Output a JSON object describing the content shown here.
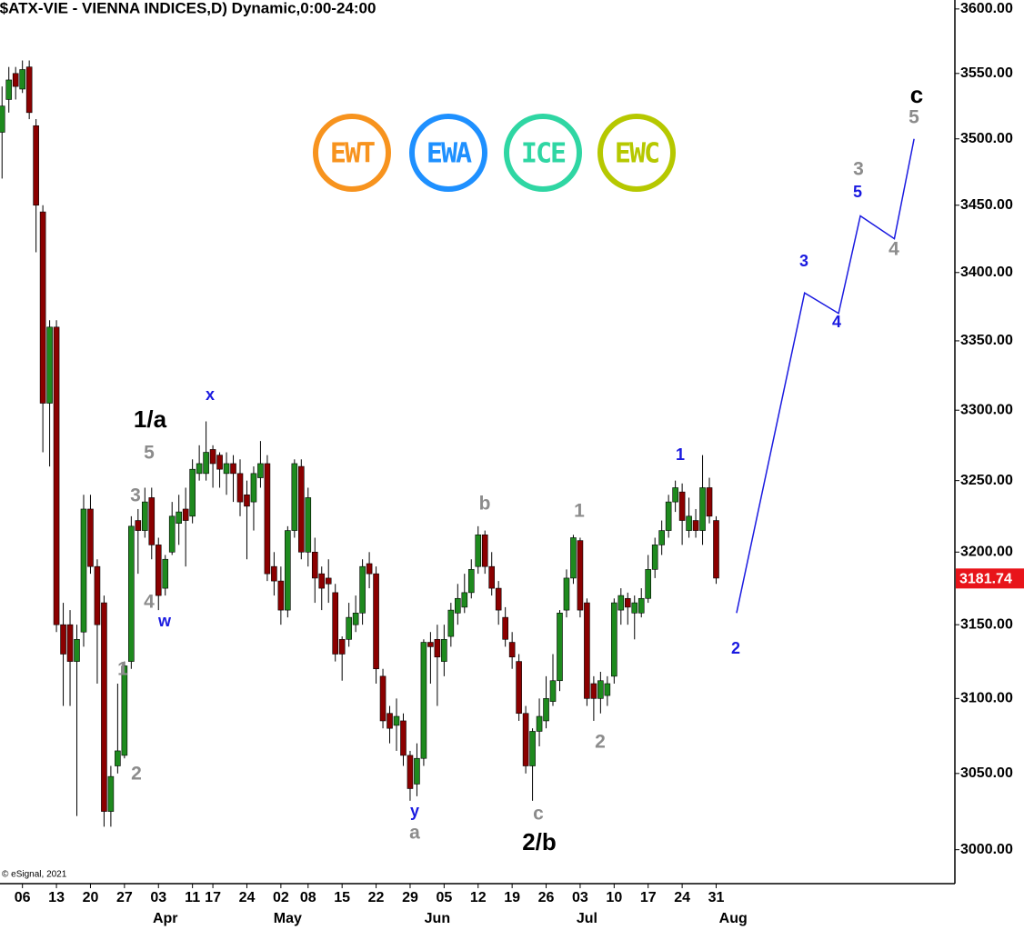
{
  "chart_data": {
    "type": "candlestick",
    "title": "($ATX-VIE - VIENNA INDICES,D) Dynamic,0:00-24:00",
    "copyright": "© eSignal, 2021",
    "logos": [
      {
        "text": "EWT",
        "color": "#f7931e"
      },
      {
        "text": "EWA",
        "color": "#1e90ff"
      },
      {
        "text": "ICE",
        "color": "#2fd6a3"
      },
      {
        "text": "EWC",
        "color": "#b6c800"
      }
    ],
    "log_scale": true,
    "grid": false,
    "up_color": "#1e8a1e",
    "down_color": "#8b0000",
    "ylim": [
      2978,
      3607
    ],
    "yticks": [
      {
        "value": 3000,
        "label": "3000.00"
      },
      {
        "value": 3050,
        "label": "3050.00"
      },
      {
        "value": 3100,
        "label": "3100.00"
      },
      {
        "value": 3150,
        "label": "3150.00"
      },
      {
        "value": 3200,
        "label": "3200.00"
      },
      {
        "value": 3250,
        "label": "3250.00"
      },
      {
        "value": 3300,
        "label": "3300.00"
      },
      {
        "value": 3350,
        "label": "3350.00"
      },
      {
        "value": 3400,
        "label": "3400.00"
      },
      {
        "value": 3450,
        "label": "3450.00"
      },
      {
        "value": 3500,
        "label": "3500.00"
      },
      {
        "value": 3550,
        "label": "3550.00"
      },
      {
        "value": 3600,
        "label": "3600.00"
      }
    ],
    "xlim": [
      -0.3,
      140.1
    ],
    "xticks": [
      {
        "value": 3,
        "label": "06"
      },
      {
        "value": 8,
        "label": "13"
      },
      {
        "value": 13,
        "label": "20"
      },
      {
        "value": 18,
        "label": "27"
      },
      {
        "value": 23,
        "label": "03"
      },
      {
        "value": 28,
        "label": "11"
      },
      {
        "value": 31,
        "label": "17"
      },
      {
        "value": 36,
        "label": "24"
      },
      {
        "value": 41,
        "label": "02"
      },
      {
        "value": 45,
        "label": "08"
      },
      {
        "value": 50,
        "label": "15"
      },
      {
        "value": 55,
        "label": "22"
      },
      {
        "value": 60,
        "label": "29"
      },
      {
        "value": 65,
        "label": "05"
      },
      {
        "value": 70,
        "label": "12"
      },
      {
        "value": 75,
        "label": "19"
      },
      {
        "value": 80,
        "label": "26"
      },
      {
        "value": 85,
        "label": "03"
      },
      {
        "value": 90,
        "label": "10"
      },
      {
        "value": 95,
        "label": "17"
      },
      {
        "value": 100,
        "label": "24"
      },
      {
        "value": 105,
        "label": "31"
      }
    ],
    "month_ticks": [
      {
        "value": 24,
        "label": "Apr"
      },
      {
        "value": 42,
        "label": "May"
      },
      {
        "value": 64,
        "label": "Jun"
      },
      {
        "value": 86,
        "label": "Jul"
      },
      {
        "value": 107.5,
        "label": "Aug"
      }
    ],
    "last_price": 3181.74,
    "last_price_color": "#e8141a",
    "open": [
      3505,
      3530,
      3550,
      3538,
      3555,
      3510,
      3445,
      3305,
      3360,
      3150,
      3150,
      3125,
      3145,
      3230,
      3190,
      3165,
      3025,
      3055,
      3062,
      3125,
      3222,
      3215,
      3238,
      3205,
      3175,
      3200,
      3220,
      3230,
      3225,
      3255,
      3255,
      3272,
      3268,
      3255,
      3262,
      3255,
      3240,
      3235,
      3252,
      3262,
      3190,
      3180,
      3160,
      3215,
      3260,
      3200,
      3200,
      3185,
      3182,
      3172,
      3140,
      3140,
      3150,
      3158,
      3192,
      3185,
      3115,
      3090,
      3082,
      3085,
      3062,
      3043,
      3060,
      3138,
      3140,
      3125,
      3142,
      3158,
      3162,
      3172,
      3190,
      3212,
      3190,
      3175,
      3155,
      3138,
      3125,
      3090,
      3055,
      3078,
      3085,
      3098,
      3112,
      3160,
      3182,
      3208,
      3165,
      3110,
      3100,
      3102,
      3115,
      3160,
      3168,
      3158,
      3158,
      3168,
      3188,
      3205,
      3215,
      3235,
      3242,
      3215,
      3222,
      3215,
      3245,
      3222
    ],
    "close": [
      3525,
      3545,
      3540,
      3553,
      3520,
      3450,
      3305,
      3360,
      3150,
      3130,
      3125,
      3140,
      3230,
      3190,
      3150,
      3025,
      3048,
      3065,
      3122,
      3218,
      3215,
      3235,
      3205,
      3170,
      3195,
      3225,
      3228,
      3222,
      3258,
      3262,
      3270,
      3262,
      3258,
      3262,
      3255,
      3235,
      3232,
      3255,
      3262,
      3185,
      3180,
      3160,
      3215,
      3262,
      3200,
      3238,
      3182,
      3175,
      3178,
      3130,
      3130,
      3155,
      3158,
      3190,
      3185,
      3120,
      3085,
      3080,
      3088,
      3062,
      3040,
      3060,
      3138,
      3135,
      3128,
      3140,
      3160,
      3168,
      3172,
      3188,
      3212,
      3190,
      3175,
      3160,
      3140,
      3128,
      3090,
      3055,
      3078,
      3088,
      3100,
      3112,
      3158,
      3182,
      3210,
      3160,
      3100,
      3100,
      3112,
      3110,
      3165,
      3170,
      3162,
      3165,
      3168,
      3188,
      3205,
      3215,
      3235,
      3245,
      3222,
      3225,
      3215,
      3245,
      3225,
      3182
    ],
    "high": [
      3540,
      3555,
      3555,
      3560,
      3560,
      3515,
      3450,
      3365,
      3365,
      3165,
      3160,
      3150,
      3240,
      3240,
      3195,
      3170,
      3055,
      3110,
      3125,
      3225,
      3230,
      3245,
      3245,
      3210,
      3198,
      3235,
      3240,
      3245,
      3265,
      3275,
      3292,
      3275,
      3270,
      3270,
      3268,
      3265,
      3250,
      3260,
      3278,
      3268,
      3200,
      3190,
      3218,
      3265,
      3265,
      3245,
      3210,
      3190,
      3195,
      3178,
      3142,
      3165,
      3170,
      3195,
      3200,
      3190,
      3120,
      3095,
      3100,
      3090,
      3065,
      3070,
      3140,
      3145,
      3150,
      3150,
      3165,
      3178,
      3185,
      3195,
      3218,
      3215,
      3200,
      3180,
      3162,
      3145,
      3130,
      3095,
      3080,
      3100,
      3115,
      3130,
      3160,
      3188,
      3212,
      3210,
      3168,
      3115,
      3118,
      3115,
      3168,
      3175,
      3172,
      3170,
      3175,
      3198,
      3210,
      3222,
      3240,
      3250,
      3248,
      3238,
      3230,
      3268,
      3252,
      3225
    ],
    "low": [
      3470,
      3520,
      3530,
      3535,
      3515,
      3415,
      3270,
      3260,
      3145,
      3095,
      3095,
      3022,
      3135,
      3185,
      3110,
      3015,
      3015,
      3050,
      3060,
      3120,
      3185,
      3210,
      3195,
      3160,
      3170,
      3198,
      3205,
      3190,
      3220,
      3250,
      3250,
      3245,
      3245,
      3240,
      3235,
      3225,
      3195,
      3215,
      3245,
      3180,
      3170,
      3150,
      3155,
      3210,
      3195,
      3190,
      3165,
      3160,
      3165,
      3125,
      3112,
      3135,
      3145,
      3150,
      3175,
      3110,
      3080,
      3070,
      3065,
      3055,
      3032,
      3035,
      3055,
      3110,
      3095,
      3115,
      3135,
      3150,
      3158,
      3168,
      3185,
      3185,
      3170,
      3150,
      3135,
      3120,
      3085,
      3050,
      3032,
      3068,
      3080,
      3095,
      3105,
      3155,
      3178,
      3155,
      3095,
      3085,
      3090,
      3095,
      3110,
      3150,
      3150,
      3140,
      3155,
      3165,
      3182,
      3198,
      3210,
      3228,
      3205,
      3210,
      3210,
      3205,
      3220,
      3178
    ],
    "forecast": {
      "color": "#1a1ae0",
      "x": [
        108,
        118,
        123,
        126.2,
        131.2,
        134.1
      ],
      "values": [
        3158,
        3385,
        3370,
        3442,
        3425,
        3500
      ]
    },
    "annotations": [
      {
        "text": "1/a",
        "color": "#000000"
      },
      {
        "text": "x",
        "color": "#1a1ae0"
      },
      {
        "text": "5",
        "color": "#8c8c8c"
      },
      {
        "text": "3",
        "color": "#8c8c8c"
      },
      {
        "text": "4",
        "color": "#8c8c8c"
      },
      {
        "text": "w",
        "color": "#1a1ae0"
      },
      {
        "text": "1",
        "color": "#8c8c8c"
      },
      {
        "text": "2",
        "color": "#8c8c8c"
      },
      {
        "text": "y",
        "color": "#1a1ae0"
      },
      {
        "text": "a",
        "color": "#8c8c8c"
      },
      {
        "text": "b",
        "color": "#8c8c8c"
      },
      {
        "text": "c",
        "color": "#8c8c8c"
      },
      {
        "text": "2/b",
        "color": "#000000"
      },
      {
        "text": "1",
        "color": "#8c8c8c"
      },
      {
        "text": "2",
        "color": "#8c8c8c"
      },
      {
        "text": "1",
        "color": "#1a1ae0"
      },
      {
        "text": "2",
        "color": "#1a1ae0"
      },
      {
        "text": "3",
        "color": "#1a1ae0"
      },
      {
        "text": "4",
        "color": "#1a1ae0"
      },
      {
        "text": "5",
        "color": "#1a1ae0"
      },
      {
        "text": "3",
        "color": "#8c8c8c"
      },
      {
        "text": "4",
        "color": "#8c8c8c"
      },
      {
        "text": "5",
        "color": "#8c8c8c"
      },
      {
        "text": "c",
        "color": "#000000"
      }
    ]
  }
}
